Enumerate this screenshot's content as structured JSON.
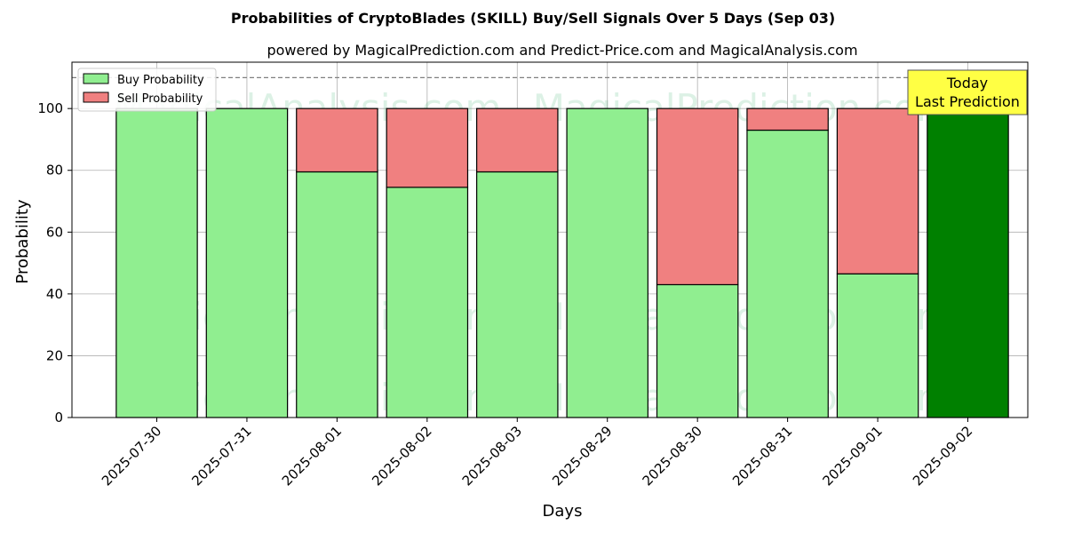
{
  "chart_data": {
    "type": "bar",
    "stacked": true,
    "title": "Probabilities of CryptoBlades (SKILL) Buy/Sell Signals Over 5 Days (Sep 03)",
    "subtitle": "powered by MagicalPrediction.com and Predict-Price.com and MagicalAnalysis.com",
    "xlabel": "Days",
    "ylabel": "Probability",
    "ylim": [
      0,
      115
    ],
    "yticks": [
      0,
      20,
      40,
      60,
      80,
      100
    ],
    "reference_line": 110,
    "grid": true,
    "legend_position": "top-left",
    "categories": [
      "2025-07-30",
      "2025-07-31",
      "2025-08-01",
      "2025-08-02",
      "2025-08-03",
      "2025-08-29",
      "2025-08-30",
      "2025-08-31",
      "2025-09-01",
      "2025-09-02"
    ],
    "series": [
      {
        "name": "Buy Probability",
        "color": "#90ee90",
        "values": [
          100,
          100,
          79.5,
          74.5,
          79.5,
          100,
          43,
          93,
          46.5,
          100
        ]
      },
      {
        "name": "Sell Probability",
        "color": "#f08080",
        "values": [
          0,
          0,
          20.5,
          25.5,
          20.5,
          0,
          57,
          7,
          53.5,
          0
        ]
      }
    ],
    "highlight": {
      "index": 9,
      "color": "#008000"
    },
    "annotation": {
      "line1": "Today",
      "line2": "Last Prediction",
      "background": "#ffff44"
    },
    "watermarks": [
      "MagicalAnalysis.com",
      "MagicalPrediction.com"
    ]
  }
}
